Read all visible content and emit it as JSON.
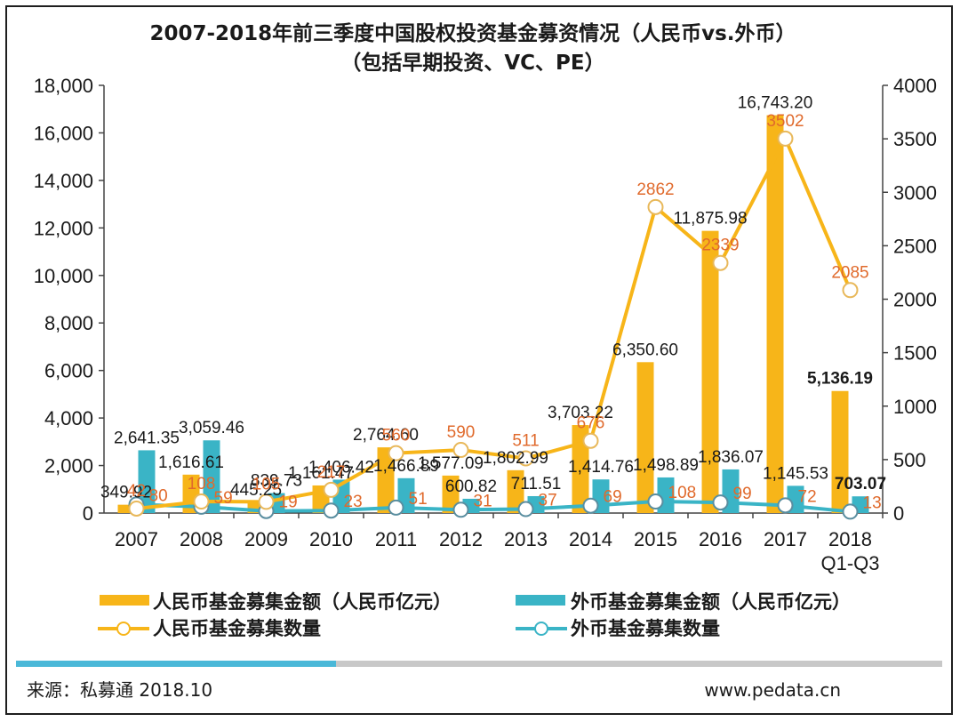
{
  "chart_data": {
    "type": "bar",
    "title": "2007-2018年前三季度中国股权投资基金募资情况（人民币vs.外币）",
    "subtitle": "（包括早期投资、VC、PE）",
    "categories": [
      "2007",
      "2008",
      "2009",
      "2010",
      "2011",
      "2012",
      "2013",
      "2014",
      "2015",
      "2016",
      "2017",
      "2018"
    ],
    "category_sublabels": [
      "",
      "",
      "",
      "",
      "",
      "",
      "",
      "",
      "",
      "",
      "",
      "Q1-Q3"
    ],
    "left_axis": {
      "ylim": [
        0,
        18000
      ],
      "ticks": [
        "0",
        "2,000",
        "4,000",
        "6,000",
        "8,000",
        "10,000",
        "12,000",
        "14,000",
        "16,000",
        "18,000"
      ],
      "tick_values": [
        0,
        2000,
        4000,
        6000,
        8000,
        10000,
        12000,
        14000,
        16000,
        18000
      ]
    },
    "right_axis": {
      "ylim": [
        0,
        4000
      ],
      "ticks": [
        "0",
        "500",
        "1000",
        "1500",
        "2000",
        "2500",
        "3000",
        "3500",
        "4000"
      ],
      "tick_values": [
        0,
        500,
        1000,
        1500,
        2000,
        2500,
        3000,
        3500,
        4000
      ]
    },
    "series": [
      {
        "name": "人民币基金募集金额（人民币亿元）",
        "kind": "bar",
        "axis": "left",
        "color": "#f7b519",
        "values": [
          349.92,
          1616.61,
          445.25,
          1161.47,
          2764.6,
          1577.09,
          1802.99,
          3703.22,
          6350.6,
          11875.98,
          16743.2,
          5136.19
        ],
        "labels": [
          "349.92",
          "1,616.61",
          "445.25",
          "1,161.47",
          "2,764.60",
          "1,577.09",
          "1,802.99",
          "3,703.22",
          "6,350.60",
          "11,875.98",
          "16,743.20",
          "5,136.19"
        ]
      },
      {
        "name": "外币基金募集金额（人民币亿元）",
        "kind": "bar",
        "axis": "left",
        "color": "#3ab4c6",
        "values": [
          2641.35,
          3059.46,
          839.73,
          1406.42,
          1466.89,
          600.82,
          711.51,
          1414.76,
          1498.89,
          1836.07,
          1145.53,
          703.07
        ],
        "labels": [
          "2,641.35",
          "3,059.46",
          "839.73",
          "1,406.42",
          "1,466.89",
          "600.82",
          "711.51",
          "1,414.76",
          "1,498.89",
          "1,836.07",
          "1,145.53",
          "703.07"
        ]
      },
      {
        "name": "人民币基金募集数量",
        "kind": "line",
        "axis": "right",
        "color": "#f7b519",
        "values": [
          42,
          108,
          105,
          217,
          560,
          590,
          511,
          676,
          2862,
          2339,
          3502,
          2085
        ],
        "labels": [
          "42",
          "108",
          "105",
          "217",
          "560",
          "590",
          "511",
          "676",
          "2862",
          "2339",
          "3502",
          "2085"
        ]
      },
      {
        "name": "外币基金募集数量",
        "kind": "line",
        "axis": "right",
        "color": "#3ab4c6",
        "values": [
          80,
          59,
          19,
          23,
          51,
          31,
          37,
          69,
          108,
          99,
          72,
          13
        ],
        "labels": [
          "80",
          "59",
          "19",
          "23",
          "51",
          "31",
          "37",
          "69",
          "108",
          "99",
          "72",
          "13"
        ]
      }
    ],
    "legend_position": "bottom"
  },
  "footer": {
    "source": "来源：私募通 2018.10",
    "website": "www.pedata.cn"
  }
}
